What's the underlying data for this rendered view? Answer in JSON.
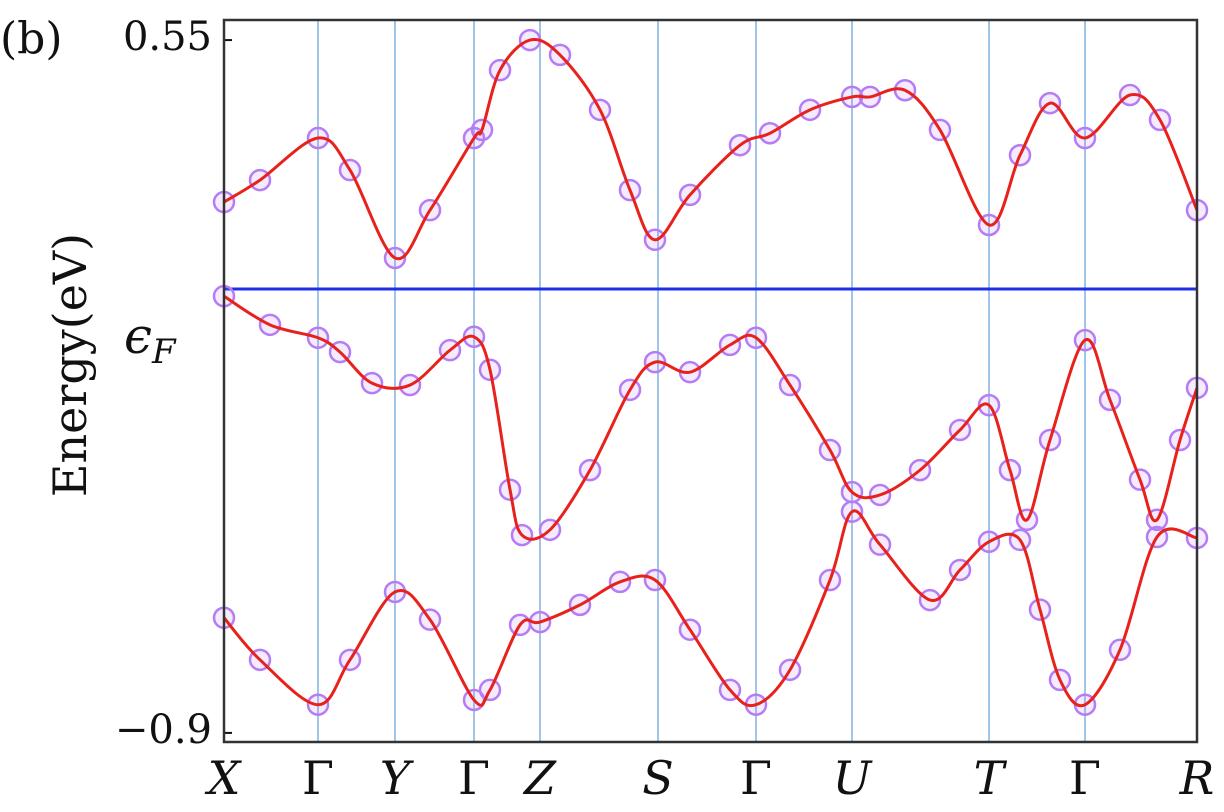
{
  "chart_data": {
    "type": "line",
    "panel_label": "(b)",
    "ylabel": "Energy(eV)",
    "fermi_label": {
      "symbol": "ϵ",
      "subscript": "F"
    },
    "fermi_level": 0.029,
    "fermi_color": "#1f2ee8",
    "line_color": "#e8211b",
    "marker_color": "#b57cf5",
    "kpath_color": "#9fc5e8",
    "xlim": [
      0,
      973
    ],
    "xticks": [
      {
        "value": 0,
        "label": "X"
      },
      {
        "value": 94,
        "label": "Γ"
      },
      {
        "value": 171,
        "label": "Y"
      },
      {
        "value": 250,
        "label": "Γ"
      },
      {
        "value": 316,
        "label": "Z"
      },
      {
        "value": 434,
        "label": "S"
      },
      {
        "value": 532,
        "label": "Γ"
      },
      {
        "value": 628,
        "label": "U"
      },
      {
        "value": 765,
        "label": "T"
      },
      {
        "value": 861,
        "label": "Γ"
      },
      {
        "value": 973,
        "label": "R"
      }
    ],
    "ylim": [
      -0.919,
      0.592
    ],
    "yticks": [
      0.55,
      {
        "value": -0.9,
        "label": "−0.9"
      }
    ],
    "series": [
      {
        "x": [
          0,
          36,
          94,
          126,
          171,
          206,
          250,
          258,
          276,
          306,
          336,
          376,
          406,
          431,
          466,
          516,
          546,
          586,
          628,
          646,
          681,
          716,
          765,
          796,
          826,
          861,
          906,
          936,
          973
        ],
        "values": [
          0.211,
          0.257,
          0.345,
          0.278,
          0.094,
          0.194,
          0.345,
          0.362,
          0.487,
          0.55,
          0.519,
          0.404,
          0.236,
          0.132,
          0.226,
          0.33,
          0.355,
          0.404,
          0.431,
          0.431,
          0.445,
          0.362,
          0.163,
          0.309,
          0.418,
          0.345,
          0.435,
          0.383,
          0.194
        ]
      },
      {
        "x": [
          0,
          46,
          94,
          116,
          148,
          186,
          226,
          250,
          266,
          286,
          298,
          326,
          366,
          406,
          431,
          466,
          506,
          532,
          566,
          606,
          628,
          656,
          696,
          736,
          765,
          786,
          803,
          826,
          861,
          886,
          916,
          933,
          956,
          973
        ],
        "values": [
          0.014,
          -0.046,
          -0.073,
          -0.103,
          -0.168,
          -0.172,
          -0.099,
          -0.071,
          -0.14,
          -0.391,
          -0.486,
          -0.475,
          -0.35,
          -0.182,
          -0.124,
          -0.145,
          -0.088,
          -0.073,
          -0.172,
          -0.308,
          -0.396,
          -0.402,
          -0.35,
          -0.266,
          -0.214,
          -0.35,
          -0.454,
          -0.287,
          -0.078,
          -0.203,
          -0.37,
          -0.454,
          -0.287,
          -0.178
        ]
      },
      {
        "x": [
          0,
          36,
          94,
          126,
          171,
          206,
          250,
          266,
          296,
          316,
          356,
          396,
          431,
          466,
          506,
          532,
          566,
          606,
          628,
          656,
          706,
          736,
          765,
          796,
          816,
          836,
          861,
          896,
          933,
          973
        ],
        "values": [
          -0.659,
          -0.747,
          -0.841,
          -0.747,
          -0.605,
          -0.663,
          -0.831,
          -0.81,
          -0.674,
          -0.668,
          -0.632,
          -0.584,
          -0.58,
          -0.684,
          -0.81,
          -0.841,
          -0.768,
          -0.58,
          -0.437,
          -0.506,
          -0.622,
          -0.559,
          -0.5,
          -0.496,
          -0.642,
          -0.789,
          -0.841,
          -0.726,
          -0.49,
          -0.492
        ]
      }
    ]
  }
}
